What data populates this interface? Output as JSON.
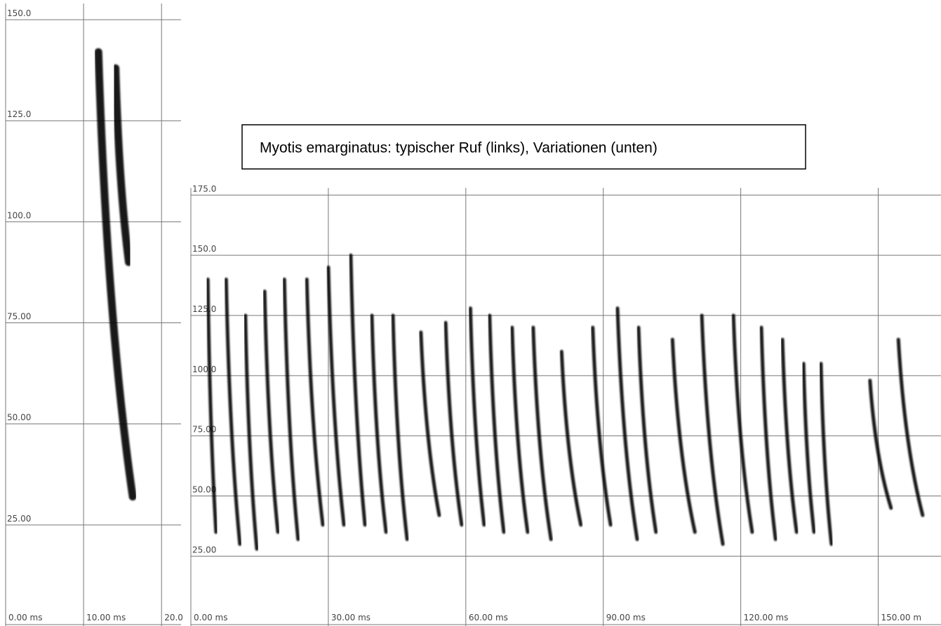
{
  "caption": "Myotis emarginatus: typischer Ruf (links), Variationen (unten)",
  "chart_data": [
    {
      "type": "spectrogram",
      "xlim": [
        0,
        22.5
      ],
      "ylim": [
        0,
        154
      ],
      "xticks": [
        {
          "value": 0,
          "label": "0.00 ms"
        },
        {
          "value": 10,
          "label": "10.00 ms"
        },
        {
          "value": 20,
          "label": "20.0"
        }
      ],
      "yticks": [
        {
          "value": 25,
          "label": "25.00"
        },
        {
          "value": 50,
          "label": "50.00"
        },
        {
          "value": 75,
          "label": "75.00"
        },
        {
          "value": 100,
          "label": "100.0"
        },
        {
          "value": 125,
          "label": "125.0"
        },
        {
          "value": 150,
          "label": "150.0"
        }
      ],
      "grid": true,
      "color": "#000000",
      "calls": [
        {
          "t": [
            11.9,
            16.3
          ],
          "f": [
            142,
            32
          ]
        },
        {
          "t": [
            14.1,
            15.8
          ],
          "f": [
            138,
            90
          ]
        }
      ]
    },
    {
      "type": "spectrogram",
      "xlim": [
        0,
        163.7
      ],
      "ylim": [
        -4,
        178
      ],
      "xticks": [
        {
          "value": 0,
          "label": "0.00 ms"
        },
        {
          "value": 30,
          "label": "30.00 ms"
        },
        {
          "value": 60,
          "label": "60.00 ms"
        },
        {
          "value": 90,
          "label": "90.00 ms"
        },
        {
          "value": 120,
          "label": "120.00 ms"
        },
        {
          "value": 150,
          "label": "150.00 m"
        }
      ],
      "yticks": [
        {
          "value": 25,
          "label": "25.00"
        },
        {
          "value": 50,
          "label": "50.00"
        },
        {
          "value": 75,
          "label": "75.00"
        },
        {
          "value": 100,
          "label": "100.0"
        },
        {
          "value": 125,
          "label": "125.0"
        },
        {
          "value": 150,
          "label": "150.0"
        },
        {
          "value": 175,
          "label": "175.0"
        }
      ],
      "grid": true,
      "color": "#000000",
      "calls": [
        {
          "t": [
            3.7,
            5.5
          ],
          "f": [
            140,
            35
          ]
        },
        {
          "t": [
            7.7,
            10.7
          ],
          "f": [
            140,
            30
          ]
        },
        {
          "t": [
            11.9,
            14.4
          ],
          "f": [
            125,
            28
          ]
        },
        {
          "t": [
            16.1,
            19.0
          ],
          "f": [
            135,
            35
          ]
        },
        {
          "t": [
            20.4,
            23.4
          ],
          "f": [
            140,
            32
          ]
        },
        {
          "t": [
            25.3,
            28.8
          ],
          "f": [
            140,
            38
          ]
        },
        {
          "t": [
            30.0,
            33.4
          ],
          "f": [
            145,
            38
          ]
        },
        {
          "t": [
            34.9,
            38.0
          ],
          "f": [
            150,
            38
          ]
        },
        {
          "t": [
            39.5,
            42.6
          ],
          "f": [
            125,
            35
          ]
        },
        {
          "t": [
            44.1,
            47.2
          ],
          "f": [
            125,
            32
          ]
        },
        {
          "t": [
            50.2,
            54.2
          ],
          "f": [
            118,
            42
          ]
        },
        {
          "t": [
            55.6,
            59.1
          ],
          "f": [
            122,
            38
          ]
        },
        {
          "t": [
            61.0,
            64.0
          ],
          "f": [
            128,
            38
          ]
        },
        {
          "t": [
            65.2,
            68.3
          ],
          "f": [
            125,
            35
          ]
        },
        {
          "t": [
            70.1,
            73.5
          ],
          "f": [
            120,
            35
          ]
        },
        {
          "t": [
            74.7,
            78.6
          ],
          "f": [
            120,
            32
          ]
        },
        {
          "t": [
            80.9,
            85.1
          ],
          "f": [
            110,
            38
          ]
        },
        {
          "t": [
            87.7,
            91.6
          ],
          "f": [
            120,
            38
          ]
        },
        {
          "t": [
            93.1,
            97.4
          ],
          "f": [
            128,
            32
          ]
        },
        {
          "t": [
            97.7,
            101.5
          ],
          "f": [
            120,
            35
          ]
        },
        {
          "t": [
            105.1,
            110.0
          ],
          "f": [
            115,
            35
          ]
        },
        {
          "t": [
            111.5,
            116.1
          ],
          "f": [
            125,
            30
          ]
        },
        {
          "t": [
            118.4,
            122.5
          ],
          "f": [
            125,
            35
          ]
        },
        {
          "t": [
            124.5,
            127.6
          ],
          "f": [
            120,
            32
          ]
        },
        {
          "t": [
            129.1,
            132.2
          ],
          "f": [
            115,
            35
          ]
        },
        {
          "t": [
            133.7,
            136.0
          ],
          "f": [
            105,
            35
          ]
        },
        {
          "t": [
            137.5,
            139.8
          ],
          "f": [
            105,
            30
          ]
        },
        {
          "t": [
            148.2,
            152.8
          ],
          "f": [
            98,
            45
          ]
        },
        {
          "t": [
            154.4,
            159.7
          ],
          "f": [
            115,
            42
          ]
        }
      ]
    }
  ]
}
